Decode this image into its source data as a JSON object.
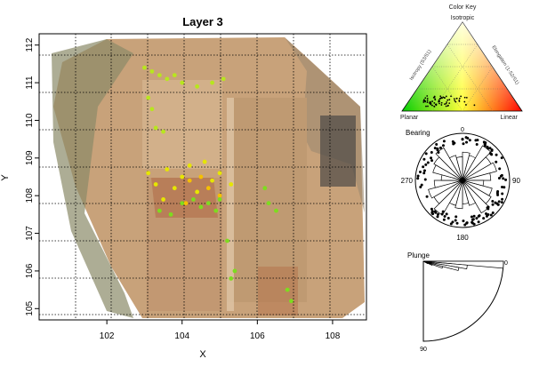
{
  "chart_data": [
    {
      "type": "scatter",
      "title": "Layer 3",
      "xlabel": "X",
      "ylabel": "Y",
      "xlim": [
        100.2,
        108.9
      ],
      "ylim": [
        104.7,
        112.3
      ],
      "xticks": [
        102,
        104,
        106,
        108
      ],
      "yticks": [
        105,
        106,
        107,
        108,
        109,
        110,
        111,
        112
      ],
      "grid": "dotted",
      "background": "excavation orthophoto",
      "series": [
        {
          "color": "#b8e61e",
          "points": [
            [
              103.0,
              111.4
            ],
            [
              103.2,
              111.3
            ],
            [
              103.4,
              111.2
            ],
            [
              103.6,
              111.1
            ],
            [
              103.8,
              111.2
            ],
            [
              104.0,
              111.0
            ],
            [
              104.4,
              110.9
            ],
            [
              104.8,
              111.0
            ],
            [
              105.1,
              111.1
            ],
            [
              103.1,
              110.6
            ],
            [
              103.2,
              110.3
            ],
            [
              103.3,
              109.8
            ],
            [
              103.5,
              109.7
            ]
          ]
        },
        {
          "color": "#e6e600",
          "points": [
            [
              103.1,
              108.6
            ],
            [
              103.3,
              108.3
            ],
            [
              103.6,
              108.7
            ],
            [
              103.8,
              108.2
            ],
            [
              104.0,
              108.5
            ],
            [
              104.2,
              108.8
            ],
            [
              104.4,
              108.1
            ],
            [
              104.6,
              108.9
            ],
            [
              104.8,
              108.4
            ],
            [
              105.0,
              108.6
            ],
            [
              105.3,
              108.3
            ],
            [
              103.5,
              107.9
            ]
          ]
        },
        {
          "color": "#f5c000",
          "points": [
            [
              104.2,
              108.4
            ],
            [
              104.5,
              108.5
            ],
            [
              104.7,
              108.2
            ],
            [
              105.0,
              108.0
            ],
            [
              104.1,
              107.8
            ]
          ]
        },
        {
          "color": "#7ddc1f",
          "points": [
            [
              104.0,
              107.8
            ],
            [
              104.3,
              107.9
            ],
            [
              104.5,
              107.7
            ],
            [
              104.7,
              107.8
            ],
            [
              104.9,
              107.6
            ],
            [
              105.0,
              107.9
            ],
            [
              103.4,
              107.6
            ],
            [
              103.7,
              107.5
            ],
            [
              106.2,
              108.2
            ],
            [
              106.3,
              107.8
            ],
            [
              106.5,
              107.6
            ],
            [
              105.2,
              106.8
            ],
            [
              105.4,
              106.0
            ],
            [
              105.3,
              105.8
            ],
            [
              106.8,
              105.5
            ],
            [
              106.9,
              105.2
            ]
          ]
        }
      ]
    },
    {
      "type": "ternary",
      "title": "Color Key",
      "corners": [
        "Isotropic",
        "Planar",
        "Linear"
      ],
      "left_axis": "Isotropy (S3/S1)",
      "right_axis": "Elongation (1-S2/S1)",
      "colors": {
        "isotropic": "#ffff00",
        "planar": "#00cc00",
        "linear": "#ff0000"
      },
      "points_cluster": {
        "isotropy": [
          0.05,
          0.25
        ],
        "elongation": [
          0.05,
          0.45
        ]
      }
    },
    {
      "type": "rose",
      "title": "Bearing",
      "labels": [
        "0",
        "90",
        "180",
        "270"
      ],
      "mirrored_pairs": [
        "0-180",
        "90-270"
      ],
      "sector_deg": 15,
      "sector_fraction": [
        0.6,
        0.55,
        0.85,
        0.7,
        0.75,
        0.6,
        0.45,
        0.65,
        0.7,
        0.8,
        0.55,
        0.5
      ]
    },
    {
      "type": "rose",
      "title": "Plunge",
      "range_deg": [
        0,
        90
      ],
      "labels": [
        "0",
        "90"
      ],
      "sector_deg": 5,
      "sector_fraction": [
        1.0,
        0.55,
        0.45,
        0.25,
        0.12,
        0.06
      ]
    }
  ]
}
